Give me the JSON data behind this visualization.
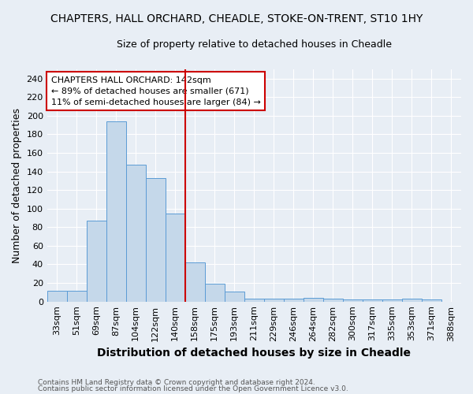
{
  "title": "CHAPTERS, HALL ORCHARD, CHEADLE, STOKE-ON-TRENT, ST10 1HY",
  "subtitle": "Size of property relative to detached houses in Cheadle",
  "xlabel": "Distribution of detached houses by size in Cheadle",
  "ylabel": "Number of detached properties",
  "footnote1": "Contains HM Land Registry data © Crown copyright and database right 2024.",
  "footnote2": "Contains public sector information licensed under the Open Government Licence v3.0.",
  "annotation_line1": "CHAPTERS HALL ORCHARD: 142sqm",
  "annotation_line2": "← 89% of detached houses are smaller (671)",
  "annotation_line3": "11% of semi-detached houses are larger (84) →",
  "bar_color": "#c5d8ea",
  "bar_edge_color": "#5b9bd5",
  "vline_color": "#cc0000",
  "annotation_box_edge": "#cc0000",
  "annotation_box_fill": "#ffffff",
  "categories": [
    "33sqm",
    "51sqm",
    "69sqm",
    "87sqm",
    "104sqm",
    "122sqm",
    "140sqm",
    "158sqm",
    "175sqm",
    "193sqm",
    "211sqm",
    "229sqm",
    "246sqm",
    "264sqm",
    "282sqm",
    "300sqm",
    "317sqm",
    "335sqm",
    "353sqm",
    "371sqm",
    "388sqm"
  ],
  "values": [
    12,
    12,
    87,
    194,
    147,
    133,
    95,
    42,
    19,
    11,
    3,
    3,
    3,
    4,
    3,
    2,
    2,
    2,
    3,
    2,
    0
  ],
  "ylim": [
    0,
    250
  ],
  "yticks": [
    0,
    20,
    40,
    60,
    80,
    100,
    120,
    140,
    160,
    180,
    200,
    220,
    240
  ],
  "vline_x_index": 6,
  "bg_color": "#e8eef5",
  "grid_color": "#ffffff",
  "title_fontsize": 10,
  "subtitle_fontsize": 9,
  "ylabel_fontsize": 9,
  "xlabel_fontsize": 10,
  "tick_fontsize": 8,
  "footnote_fontsize": 6.5,
  "annotation_fontsize": 8
}
